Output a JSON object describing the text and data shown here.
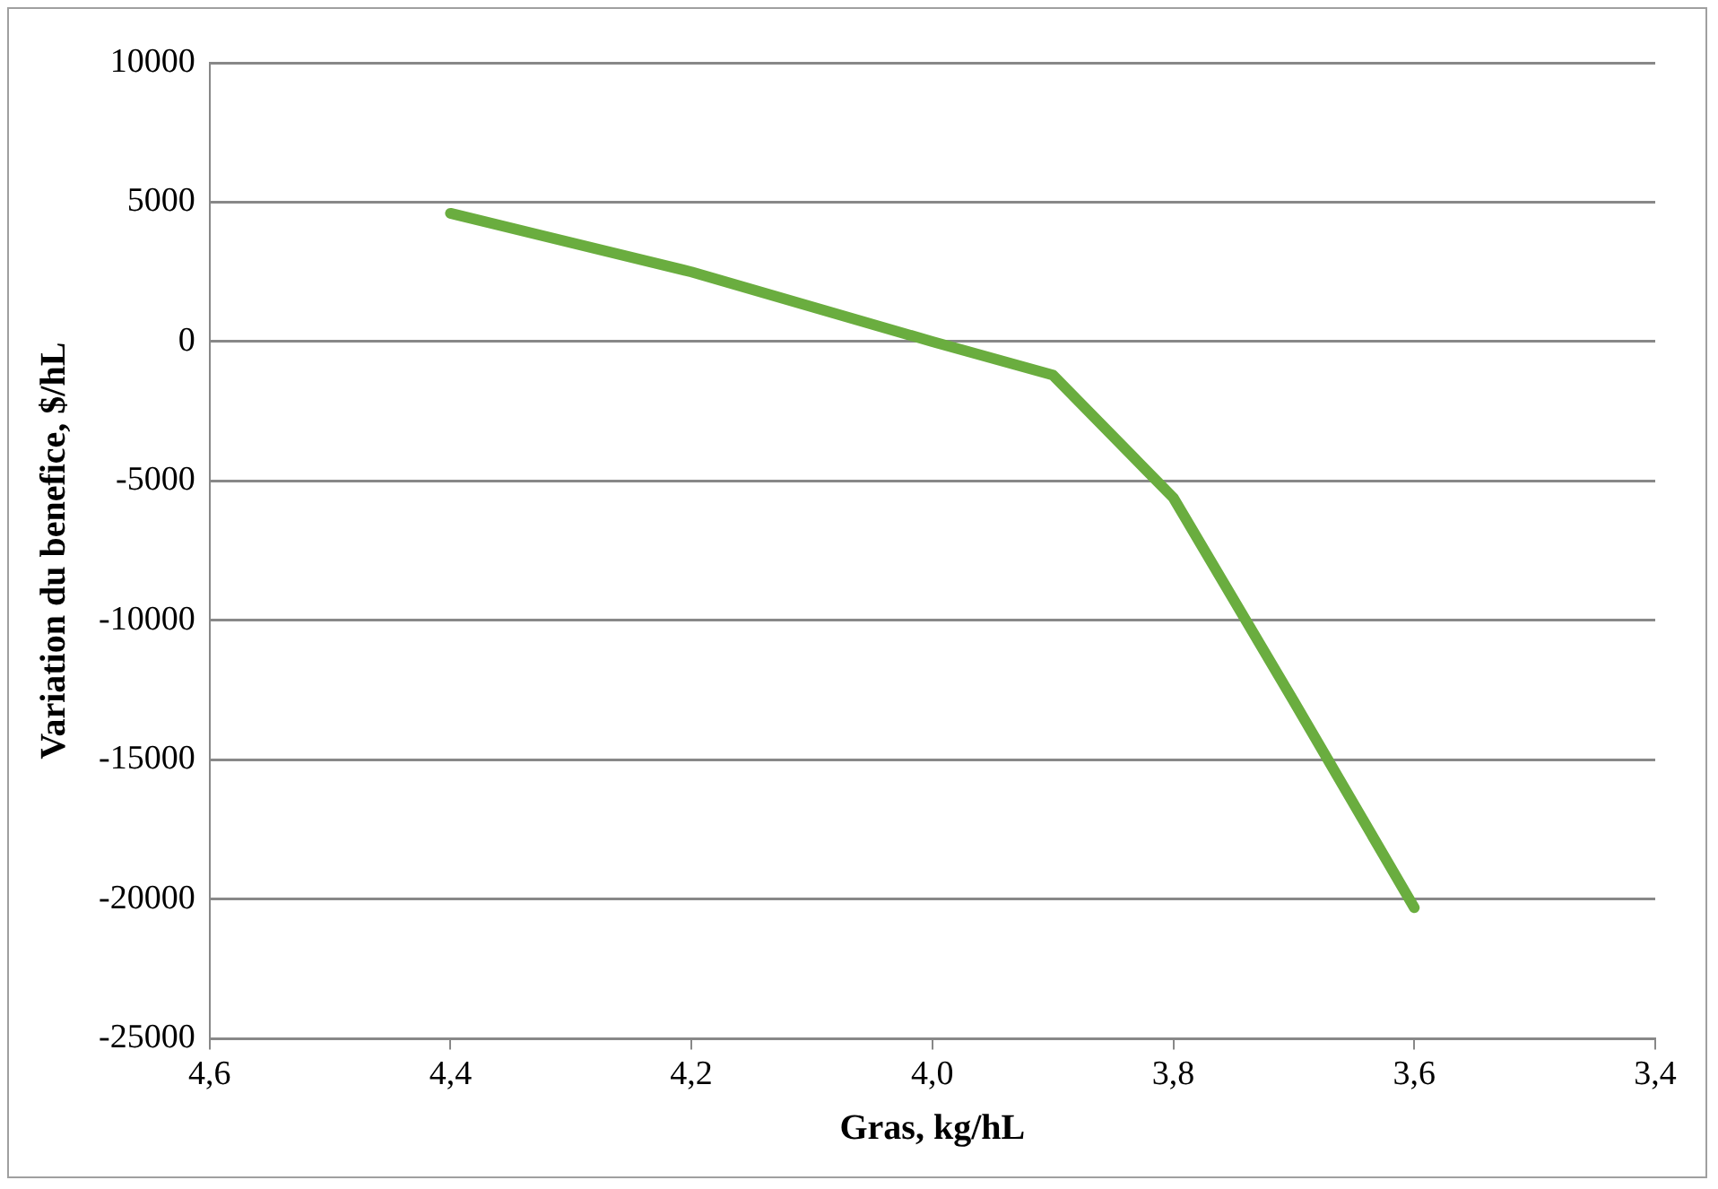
{
  "chart_data": {
    "type": "line",
    "xlabel": "Gras, kg/hL",
    "ylabel": "Variation du benefice, $/hL",
    "x": [
      4.4,
      4.2,
      4.0,
      3.9,
      3.8,
      3.7,
      3.6
    ],
    "series": [
      {
        "color": "#6aad3f",
        "values": [
          4600,
          2500,
          0,
          -1200,
          -5600,
          -12900,
          -20300
        ]
      }
    ],
    "xlim": [
      4.6,
      3.4
    ],
    "xticks": [
      {
        "value": 4.6,
        "label": "4,6"
      },
      {
        "value": 4.4,
        "label": "4,4"
      },
      {
        "value": 4.2,
        "label": "4,2"
      },
      {
        "value": 4.0,
        "label": "4,0"
      },
      {
        "value": 3.8,
        "label": "3,8"
      },
      {
        "value": 3.6,
        "label": "3,6"
      },
      {
        "value": 3.4,
        "label": "3,4"
      }
    ],
    "ylim": [
      -25000,
      10000
    ],
    "yticks": [
      -25000,
      -20000,
      -15000,
      -10000,
      -5000,
      0,
      5000,
      10000
    ],
    "grid": "y",
    "legend": false,
    "marker": "none",
    "line_style": "solid"
  }
}
